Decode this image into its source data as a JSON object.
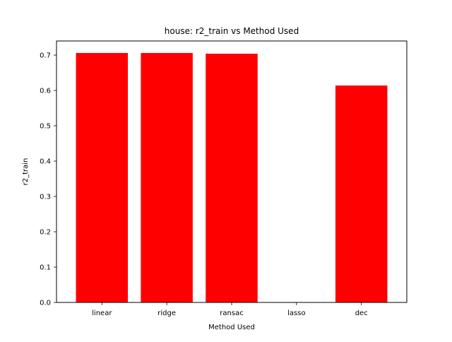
{
  "chart_data": {
    "type": "bar",
    "title": "house: r2_train vs Method Used",
    "xlabel": "Method Used",
    "ylabel": "r2_train",
    "categories": [
      "linear",
      "ridge",
      "ransac",
      "lasso",
      "dec"
    ],
    "values": [
      0.706,
      0.706,
      0.704,
      0.0,
      0.614
    ],
    "ylim": [
      0,
      0.74
    ],
    "yticks": [
      0.0,
      0.1,
      0.2,
      0.3,
      0.4,
      0.5,
      0.6,
      0.7
    ],
    "ytick_labels": [
      "0.0",
      "0.1",
      "0.2",
      "0.3",
      "0.4",
      "0.5",
      "0.6",
      "0.7"
    ],
    "bar_color": "#ff0000",
    "grid": false,
    "legend": "none"
  }
}
